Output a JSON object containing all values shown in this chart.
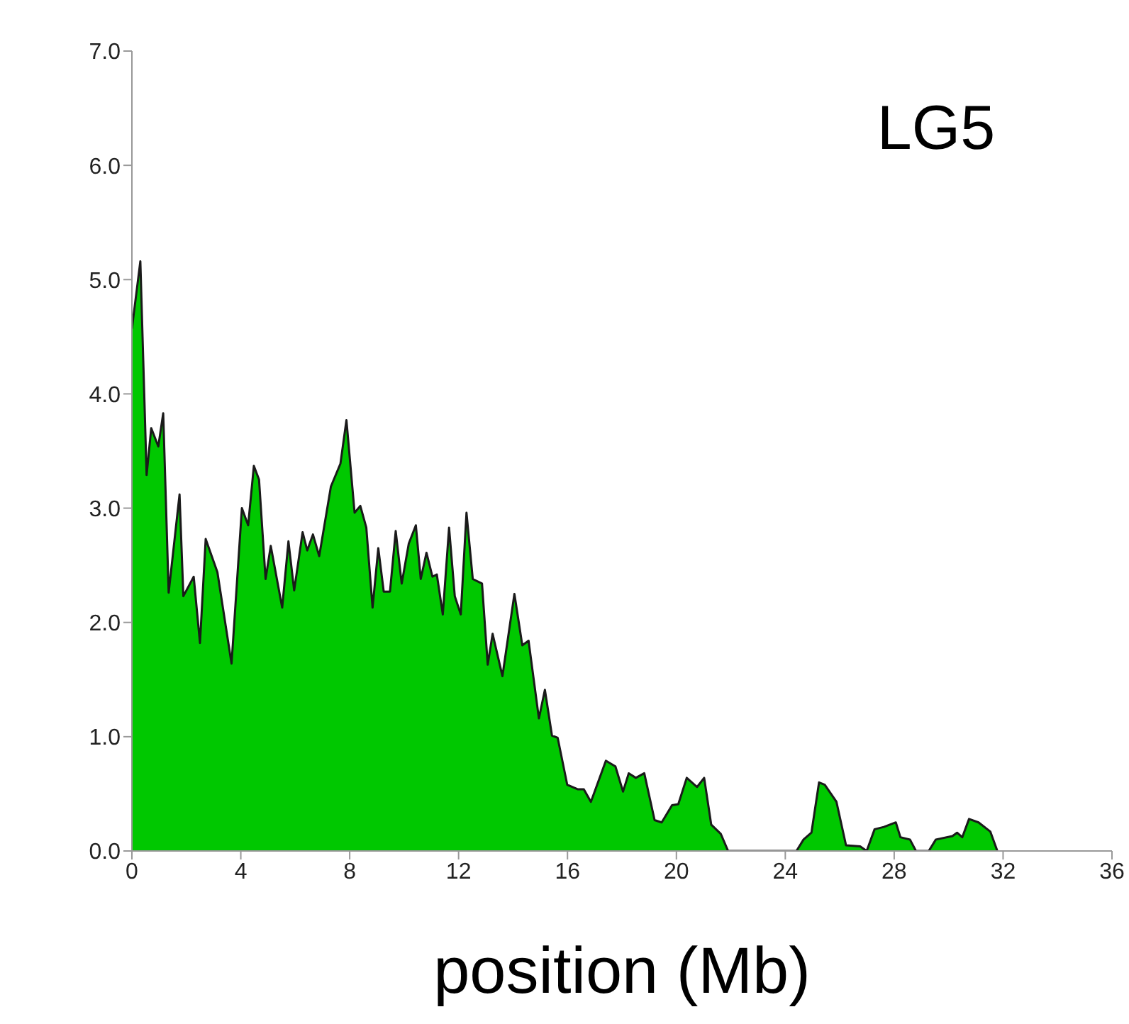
{
  "chart_data": {
    "type": "area",
    "title": "LG5",
    "xlabel": "position (Mb)",
    "xlim": [
      0,
      36
    ],
    "xticks": [
      0,
      4,
      8,
      12,
      16,
      20,
      24,
      28,
      32,
      36
    ],
    "ylim": [
      0,
      7
    ],
    "yticks": [
      {
        "value": 0,
        "label": "0.0"
      },
      {
        "value": 1,
        "label": "1.0"
      },
      {
        "value": 2,
        "label": "2.0"
      },
      {
        "value": 3,
        "label": "3.0"
      },
      {
        "value": 4,
        "label": "4.0"
      },
      {
        "value": 5,
        "label": "5.0"
      },
      {
        "value": 6,
        "label": "6.0"
      },
      {
        "value": 7,
        "label": "7.0"
      }
    ],
    "grid": false,
    "legend": false,
    "series": [
      {
        "color": "#00c800",
        "x": [
          0,
          0.31,
          0.54,
          0.71,
          0.97,
          1.15,
          1.35,
          1.75,
          1.89,
          2.27,
          2.5,
          2.71,
          3.14,
          3.66,
          4.04,
          4.27,
          4.48,
          4.67,
          4.91,
          5.1,
          5.52,
          5.75,
          5.96,
          6.27,
          6.44,
          6.65,
          6.88,
          7.31,
          7.66,
          7.88,
          8.18,
          8.39,
          8.61,
          8.84,
          9.05,
          9.25,
          9.48,
          9.69,
          9.91,
          10.17,
          10.43,
          10.61,
          10.82,
          11.04,
          11.2,
          11.42,
          11.65,
          11.86,
          12.08,
          12.29,
          12.52,
          12.86,
          13.07,
          13.25,
          13.61,
          14.05,
          14.34,
          14.57,
          14.95,
          15.17,
          15.43,
          15.64,
          15.99,
          16.37,
          16.6,
          16.86,
          17.41,
          17.76,
          18.04,
          18.25,
          18.51,
          18.82,
          19.2,
          19.46,
          19.84,
          20.07,
          20.38,
          20.76,
          21.02,
          21.28,
          21.63,
          21.9,
          24.41,
          24.67,
          24.96,
          25.24,
          25.45,
          25.88,
          26.23,
          26.75,
          26.99,
          27.28,
          27.62,
          28.06,
          28.23,
          28.58,
          28.8,
          29.27,
          29.53,
          30.14,
          30.31,
          30.5,
          30.75,
          31.1,
          31.53,
          31.79
        ],
        "values": [
          4.57,
          5.16,
          3.29,
          3.7,
          3.54,
          3.83,
          2.26,
          3.12,
          2.23,
          2.4,
          1.82,
          2.73,
          2.44,
          1.64,
          3.0,
          2.85,
          3.37,
          3.25,
          2.38,
          2.67,
          2.13,
          2.71,
          2.28,
          2.79,
          2.63,
          2.77,
          2.58,
          3.19,
          3.39,
          3.77,
          2.96,
          3.02,
          2.83,
          2.13,
          2.65,
          2.27,
          2.27,
          2.8,
          2.34,
          2.69,
          2.85,
          2.38,
          2.61,
          2.4,
          2.42,
          2.07,
          2.83,
          2.23,
          2.07,
          2.96,
          2.38,
          2.34,
          1.63,
          1.9,
          1.53,
          2.25,
          1.8,
          1.84,
          1.16,
          1.41,
          1.01,
          0.99,
          0.58,
          0.54,
          0.54,
          0.43,
          0.79,
          0.74,
          0.52,
          0.68,
          0.64,
          0.68,
          0.27,
          0.25,
          0.4,
          0.41,
          0.64,
          0.56,
          0.64,
          0.23,
          0.15,
          0,
          0,
          0.1,
          0.16,
          0.6,
          0.58,
          0.43,
          0.05,
          0.04,
          0,
          0.19,
          0.21,
          0.25,
          0.12,
          0.1,
          0,
          0,
          0.1,
          0.13,
          0.16,
          0.12,
          0.28,
          0.25,
          0.17,
          0
        ]
      }
    ]
  }
}
